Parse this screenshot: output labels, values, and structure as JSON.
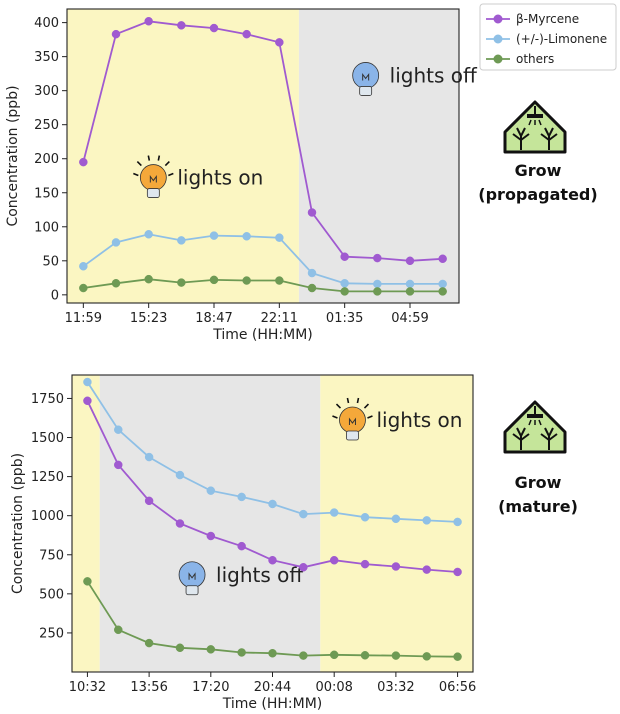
{
  "colors": {
    "myrcene": "#a05ad0",
    "limonene": "#8fc0e6",
    "others": "#6e9a54",
    "lights_on_bg": "#fbf6c2",
    "lights_off_bg": "#e6e6e6",
    "bulb_on": "#f4a83a",
    "bulb_off": "#8ab4e8",
    "icon_fill": "#c5e59a"
  },
  "legend": {
    "items": [
      {
        "label": "β-Myrcene",
        "color": "#a05ad0"
      },
      {
        "label": "(+/-)-Limonene",
        "color": "#8fc0e6"
      },
      {
        "label": "others",
        "color": "#6e9a54"
      }
    ]
  },
  "chart_data": [
    {
      "type": "line",
      "xlabel": "Time (HH:MM)",
      "ylabel": "Concentration (ppb)",
      "ylim": [
        -12,
        420
      ],
      "yticks": [
        0,
        50,
        100,
        150,
        200,
        250,
        300,
        350,
        400
      ],
      "xticks": [
        {
          "label": "11:59",
          "index": 0
        },
        {
          "label": "15:23",
          "index": 2
        },
        {
          "label": "18:47",
          "index": 4
        },
        {
          "label": "22:11",
          "index": 6
        },
        {
          "label": "01:35",
          "index": 8
        },
        {
          "label": "04:59",
          "index": 10
        }
      ],
      "n_points": 12,
      "regions": [
        {
          "state": "on",
          "from": -0.5,
          "to": 6.6
        },
        {
          "state": "off",
          "from": 6.6,
          "to": 11.5
        }
      ],
      "annotations": [
        {
          "text": "lights on",
          "bulb": "on",
          "x": 3.0,
          "y": 165
        },
        {
          "text": "lights off",
          "bulb": "off",
          "x": 9.5,
          "y": 315
        }
      ],
      "series": [
        {
          "name": "β-Myrcene",
          "color_key": "myrcene",
          "values": [
            195,
            383,
            402,
            396,
            392,
            383,
            371,
            121,
            56,
            54,
            50,
            53
          ]
        },
        {
          "name": "(+/-)-Limonene",
          "color_key": "limonene",
          "values": [
            42,
            77,
            89,
            80,
            87,
            86,
            84,
            32,
            17,
            16,
            16,
            16
          ]
        },
        {
          "name": "others",
          "color_key": "others",
          "values": [
            10,
            17,
            23,
            18,
            22,
            21,
            21,
            10,
            5,
            5,
            5,
            5
          ]
        }
      ],
      "side_label": [
        "Grow",
        "(propagated)"
      ]
    },
    {
      "type": "line",
      "xlabel": "Time (HH:MM)",
      "ylabel": "Concentration (ppb)",
      "ylim": [
        0,
        1900
      ],
      "yticks": [
        250,
        500,
        750,
        1000,
        1250,
        1500,
        1750
      ],
      "xticks": [
        {
          "label": "10:32",
          "index": 0
        },
        {
          "label": "13:56",
          "index": 2
        },
        {
          "label": "17:20",
          "index": 4
        },
        {
          "label": "20:44",
          "index": 6
        },
        {
          "label": "00:08",
          "index": 8
        },
        {
          "label": "03:32",
          "index": 10
        },
        {
          "label": "06:56",
          "index": 12
        }
      ],
      "n_points": 13,
      "regions": [
        {
          "state": "on",
          "from": -0.5,
          "to": 0.4
        },
        {
          "state": "off",
          "from": 0.4,
          "to": 7.55
        },
        {
          "state": "on",
          "from": 7.55,
          "to": 12.5
        }
      ],
      "annotations": [
        {
          "text": "lights on",
          "bulb": "on",
          "x": 9.5,
          "y": 1580
        },
        {
          "text": "lights off",
          "bulb": "off",
          "x": 4.3,
          "y": 590
        }
      ],
      "series": [
        {
          "name": "β-Myrcene",
          "color_key": "myrcene",
          "values": [
            1735,
            1325,
            1095,
            950,
            870,
            805,
            715,
            670,
            715,
            690,
            675,
            655,
            640
          ]
        },
        {
          "name": "(+/-)-Limonene",
          "color_key": "limonene",
          "values": [
            1855,
            1550,
            1375,
            1260,
            1160,
            1120,
            1075,
            1010,
            1020,
            990,
            980,
            970,
            960
          ]
        },
        {
          "name": "others",
          "color_key": "others",
          "values": [
            580,
            270,
            185,
            155,
            145,
            125,
            120,
            105,
            110,
            107,
            105,
            100,
            98
          ]
        }
      ],
      "side_label": [
        "Grow",
        "(mature)"
      ]
    }
  ]
}
